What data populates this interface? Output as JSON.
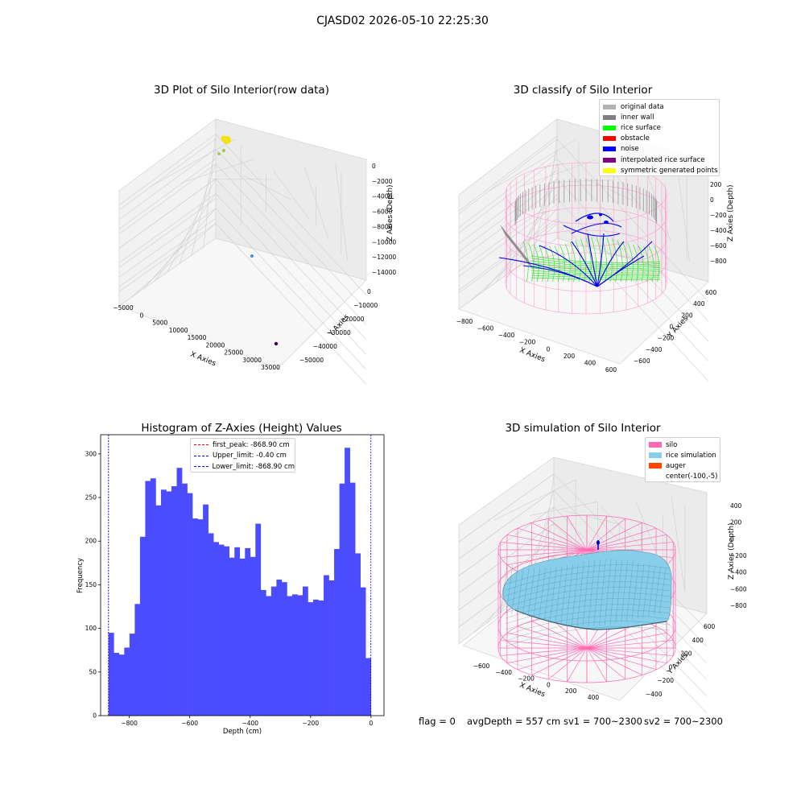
{
  "figure": {
    "suptitle": "CJASD02 2026-05-10 22:25:30"
  },
  "plot1": {
    "title": "3D Plot of Silo Interior(row data)",
    "xlabel": "X Axies",
    "ylabel": "Y Axies",
    "zlabel": "Z Axies (Depth)",
    "x_ticks": [
      "−5000",
      "0",
      "5000",
      "10000",
      "15000",
      "20000",
      "25000",
      "30000",
      "35000"
    ],
    "y_ticks": [
      "0",
      "−10000",
      "−20000",
      "−30000",
      "−40000",
      "−50000"
    ],
    "z_ticks": [
      "0",
      "−2000",
      "−4000",
      "−6000",
      "−8000",
      "−10000",
      "−12000",
      "−14000"
    ]
  },
  "plot2": {
    "title": "3D classify of Silo Interior",
    "xlabel": "X Axies",
    "ylabel": "Y Axies",
    "zlabel": "Z Axies (Depth)",
    "x_ticks": [
      "−800",
      "−600",
      "−400",
      "−200",
      "0",
      "200",
      "400",
      "600"
    ],
    "y_ticks": [
      "600",
      "400",
      "200",
      "0",
      "−200",
      "−400",
      "−600"
    ],
    "z_ticks": [
      "200",
      "0",
      "−200",
      "−400",
      "−600",
      "−800"
    ],
    "legend": [
      {
        "label": "original data",
        "color": "#b3b3b3"
      },
      {
        "label": "inner wall",
        "color": "#808080"
      },
      {
        "label": "rice surface",
        "color": "#00ff00"
      },
      {
        "label": "obstacle",
        "color": "#ff0000"
      },
      {
        "label": "noise",
        "color": "#0000ff"
      },
      {
        "label": "interpolated rice surface",
        "color": "#800080"
      },
      {
        "label": "symmetric generated points",
        "color": "#ffff00"
      }
    ]
  },
  "plot4": {
    "title": "3D simulation of Silo Interior",
    "xlabel": "X Axies",
    "ylabel": "Y Axies",
    "zlabel": "Z Axies (Depth)",
    "x_ticks": [
      "−600",
      "−400",
      "−200",
      "0",
      "200",
      "400"
    ],
    "y_ticks": [
      "600",
      "400",
      "200",
      "0",
      "−200",
      "−400"
    ],
    "z_ticks": [
      "400",
      "200",
      "0",
      "−200",
      "−400",
      "−600",
      "−800"
    ],
    "legend": [
      {
        "label": "silo",
        "color": "#ff69b4"
      },
      {
        "label": "rice simulation",
        "color": "#87ceeb"
      },
      {
        "label": "auger",
        "color": "#ff4500"
      },
      {
        "label": "center(-100,-5)",
        "color": "#ffffff"
      }
    ]
  },
  "footer": {
    "flag": "flag = 0",
    "avg": "avgDepth = 557 cm",
    "sv1": "sv1 = 700~2300",
    "sv2": "sv2 = 700~2300"
  },
  "chart_data": [
    {
      "type": "bar",
      "title": "Histogram of Z-Axies (Height) Values",
      "xlabel": "Depth (cm)",
      "ylabel": "Frequency",
      "color": "#4b4bff",
      "xlim": [
        -895,
        43
      ],
      "ylim": [
        0,
        322
      ],
      "x_ticks": [
        -800,
        -600,
        -400,
        -200,
        0
      ],
      "y_ticks": [
        0,
        50,
        100,
        150,
        200,
        250,
        300
      ],
      "bin_start": -868.9,
      "bin_width": 17.37,
      "values": [
        95,
        72,
        70,
        78,
        94,
        128,
        205,
        269,
        272,
        241,
        259,
        257,
        263,
        284,
        266,
        255,
        226,
        225,
        242,
        209,
        199,
        196,
        194,
        181,
        193,
        180,
        192,
        182,
        220,
        144,
        137,
        148,
        156,
        153,
        137,
        139,
        138,
        148,
        130,
        133,
        132,
        161,
        155,
        191,
        266,
        307,
        267,
        186,
        147,
        66
      ],
      "lines": [
        {
          "label": "first_peak: -868.90 cm",
          "x": -868.9,
          "color": "#ff0000"
        },
        {
          "label": "Upper_limit: -0.40 cm",
          "x": -0.4,
          "color": "#0000ff"
        },
        {
          "label": "Lower_limit: -868.90 cm",
          "x": -868.9,
          "color": "#0000ff"
        }
      ]
    }
  ]
}
